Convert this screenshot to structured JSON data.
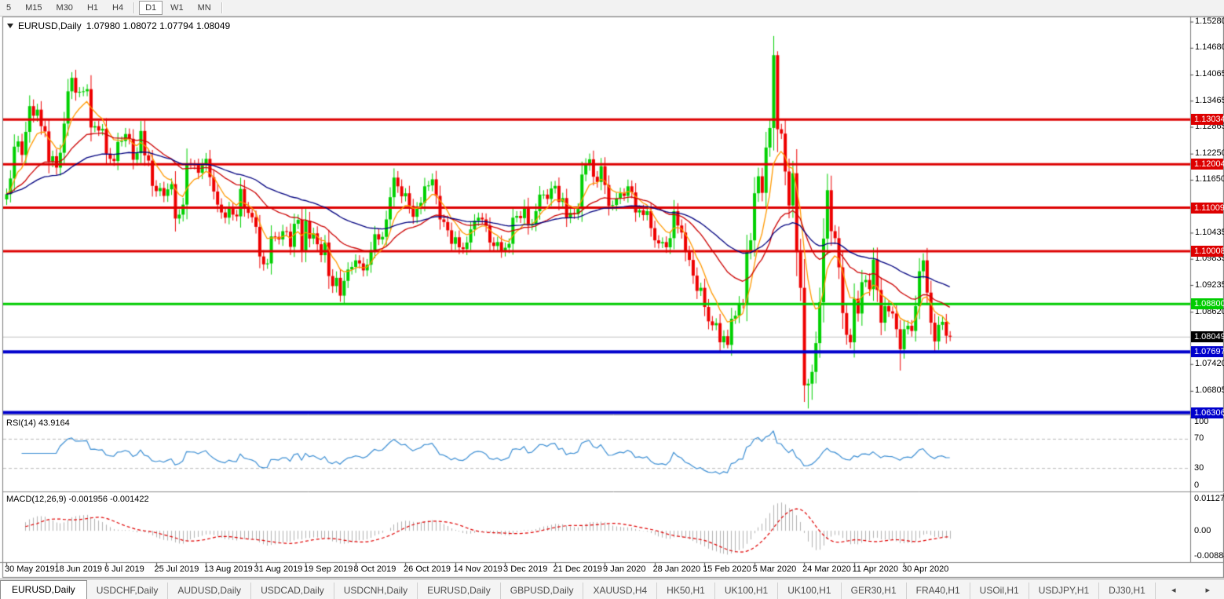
{
  "toolbar": {
    "timeframes": [
      {
        "label": "5",
        "active": false
      },
      {
        "label": "M15",
        "active": false
      },
      {
        "label": "M30",
        "active": false
      },
      {
        "label": "H1",
        "active": false
      },
      {
        "label": "H4",
        "active": false
      },
      {
        "sep": true
      },
      {
        "label": "D1",
        "active": true
      },
      {
        "label": "W1",
        "active": false
      },
      {
        "label": "MN",
        "active": false
      },
      {
        "sep": true
      }
    ]
  },
  "window": {
    "symbol": "EURUSD,Daily",
    "ohlc_text": "1.07980 1.08072 1.07794 1.08049"
  },
  "chart_data": {
    "type": "candlestick",
    "title": "EURUSD,Daily",
    "current_bar": {
      "open": 1.0798,
      "high": 1.08072,
      "low": 1.07794,
      "close": 1.08049
    },
    "ylim": [
      1.0628,
      1.1538
    ],
    "y_ticks": [
      "1.15280",
      "1.14680",
      "1.14065",
      "1.13465",
      "1.12865",
      "1.12250",
      "1.11650",
      "1.10435",
      "1.09835",
      "1.09235",
      "1.08620",
      "1.07420",
      "1.06805",
      "1.06205"
    ],
    "x_tick_labels": [
      "30 May 2019",
      "18 Jun 2019",
      "6 Jul 2019",
      "25 Jul 2019",
      "13 Aug 2019",
      "31 Aug 2019",
      "19 Sep 2019",
      "8 Oct 2019",
      "26 Oct 2019",
      "14 Nov 2019",
      "3 Dec 2019",
      "21 Dec 2019",
      "9 Jan 2020",
      "28 Jan 2020",
      "15 Feb 2020",
      "5 Mar 2020",
      "24 Mar 2020",
      "11 Apr 2020",
      "30 Apr 2020"
    ],
    "x_tick_candle_interval": 13,
    "daily_closes": [
      1.1132,
      1.1168,
      1.1241,
      1.1253,
      1.1222,
      1.1275,
      1.1334,
      1.1312,
      1.1326,
      1.1288,
      1.1276,
      1.1207,
      1.1219,
      1.1193,
      1.1227,
      1.1294,
      1.1368,
      1.1399,
      1.1365,
      1.1367,
      1.1368,
      1.1373,
      1.1285,
      1.1288,
      1.1278,
      1.1282,
      1.1225,
      1.1213,
      1.1208,
      1.1252,
      1.1254,
      1.127,
      1.1259,
      1.1211,
      1.1226,
      1.1277,
      1.1221,
      1.1209,
      1.1151,
      1.1139,
      1.1146,
      1.1128,
      1.1143,
      1.1155,
      1.1076,
      1.1085,
      1.1108,
      1.1203,
      1.12,
      1.1199,
      1.1181,
      1.1199,
      1.1213,
      1.1171,
      1.1138,
      1.1108,
      1.109,
      1.1078,
      1.1099,
      1.1085,
      1.1081,
      1.1144,
      1.1101,
      1.1089,
      1.1079,
      1.1057,
      1.0989,
      1.0971,
      1.0973,
      1.1035,
      1.1034,
      1.1028,
      1.1047,
      1.1046,
      1.1011,
      1.1064,
      1.1073,
      1.1003,
      1.1071,
      1.103,
      1.1042,
      1.1017,
      1.0992,
      1.1021,
      1.0944,
      1.0921,
      1.094,
      1.0899,
      1.0933,
      1.0959,
      1.0965,
      1.098,
      1.0973,
      1.0957,
      1.097,
      1.1004,
      1.104,
      1.1028,
      1.1034,
      1.1074,
      1.1125,
      1.117,
      1.115,
      1.1127,
      1.1134,
      1.1105,
      1.108,
      1.1099,
      1.1112,
      1.115,
      1.1152,
      1.1166,
      1.1128,
      1.1074,
      1.1068,
      1.1049,
      1.1018,
      1.1033,
      1.101,
      1.1006,
      1.1021,
      1.1051,
      1.1071,
      1.1078,
      1.1074,
      1.1059,
      1.1021,
      1.1013,
      1.1022,
      1.1001,
      1.1009,
      1.1018,
      1.1078,
      1.1082,
      1.1077,
      1.1103,
      1.106,
      1.1064,
      1.1093,
      1.1131,
      1.1131,
      1.1121,
      1.1145,
      1.1151,
      1.1114,
      1.1123,
      1.1078,
      1.1089,
      1.1086,
      1.1098,
      1.1177,
      1.1199,
      1.1212,
      1.1172,
      1.116,
      1.1196,
      1.1153,
      1.1105,
      1.1107,
      1.1122,
      1.1134,
      1.1128,
      1.115,
      1.1136,
      1.109,
      1.1095,
      1.1084,
      1.1093,
      1.1054,
      1.1026,
      1.1019,
      1.1022,
      1.101,
      1.1031,
      1.1093,
      1.106,
      1.1044,
      1.0999,
      1.0981,
      1.0945,
      1.091,
      1.0917,
      1.0873,
      1.084,
      1.0831,
      1.0836,
      1.0792,
      1.0806,
      1.0786,
      1.0846,
      1.0853,
      1.0881,
      1.088,
      1.0999,
      1.1026,
      1.1134,
      1.1173,
      1.1135,
      1.1239,
      1.1284,
      1.1451,
      1.1281,
      1.1271,
      1.1184,
      1.1106,
      1.118,
      1.0999,
      1.0917,
      1.0693,
      1.0697,
      1.0724,
      1.079,
      1.0884,
      1.103,
      1.1141,
      1.1047,
      1.1031,
      1.0964,
      1.0859,
      1.0809,
      1.0792,
      1.0892,
      1.0858,
      1.093,
      1.0935,
      1.0914,
      1.0982,
      1.0912,
      1.0837,
      1.0875,
      1.0863,
      1.0858,
      1.0822,
      1.0776,
      1.0822,
      1.083,
      1.0818,
      1.0875,
      1.0955,
      1.098,
      1.0906,
      1.0837,
      1.0794,
      1.0832,
      1.0839,
      1.0807,
      1.0805
    ],
    "wick_overrides": {
      "17": {
        "h": 1.1412
      },
      "87": {
        "l": 1.0885
      },
      "88": {
        "l": 1.0879
      },
      "188": {
        "l": 1.0778
      },
      "200": {
        "h": 1.1495
      },
      "201": {
        "h": 1.146
      },
      "208": {
        "l": 1.0655
      },
      "209": {
        "l": 1.064
      },
      "210": {
        "l": 1.066
      },
      "233": {
        "l": 1.0727
      },
      "242": {
        "l": 1.0767
      }
    },
    "bull_color": "#00d000",
    "bear_color": "#ee0000",
    "horizontal_lines": [
      {
        "price": 1.13034,
        "label": "1.13034",
        "color": "#dd0000",
        "width": 3
      },
      {
        "price": 1.12004,
        "label": "1.12004",
        "color": "#dd0000",
        "width": 3
      },
      {
        "price": 1.11009,
        "label": "1.11009",
        "color": "#dd0000",
        "width": 3
      },
      {
        "price": 1.10008,
        "label": "1.10008",
        "color": "#dd0000",
        "width": 3
      },
      {
        "price": 1.088,
        "label": "1.08800",
        "color": "#00cc00",
        "width": 3
      },
      {
        "price": 1.07697,
        "label": "1.07697",
        "color": "#0000cc",
        "width": 4
      },
      {
        "price": 1.06306,
        "label": "1.06306",
        "color": "#0000cc",
        "width": 4
      }
    ],
    "current_price": {
      "value": 1.08049,
      "label": "1.08049",
      "line_color": "#c0c0c0",
      "label_bg": "#000000"
    },
    "moving_averages": [
      {
        "type": "ema",
        "period": 8,
        "color": "#ff9900"
      },
      {
        "type": "ema",
        "period": 28,
        "color": "#cc0000"
      },
      {
        "type": "ema",
        "period": 60,
        "color": "#00007f"
      }
    ],
    "indicators": [
      {
        "name": "RSI",
        "label": "RSI(14) 43.9164",
        "period": 14,
        "value": 43.9164,
        "levels": [
          70,
          30
        ],
        "y_ticks": [
          "100",
          "70",
          "30",
          "0"
        ],
        "range": [
          0,
          100
        ],
        "color": "#3d8fd4"
      },
      {
        "name": "MACD",
        "label": "MACD(12,26,9) -0.001956 -0.001422",
        "fast": 12,
        "slow": 26,
        "signal": 9,
        "values": [
          -0.001956,
          -0.001422
        ],
        "y_ticks": [
          "0.011277",
          "0.00",
          "-0.008849"
        ],
        "range": [
          -0.0095,
          0.0118
        ],
        "histogram_color": "#b2b2b2",
        "signal_color": "#e00000"
      }
    ]
  },
  "tabs": {
    "items": [
      {
        "label": "EURUSD,Daily",
        "active": true
      },
      {
        "label": "USDCHF,Daily",
        "active": false
      },
      {
        "label": "AUDUSD,Daily",
        "active": false
      },
      {
        "label": "USDCAD,Daily",
        "active": false
      },
      {
        "label": "USDCNH,Daily",
        "active": false
      },
      {
        "label": "EURUSD,Daily",
        "active": false
      },
      {
        "label": "GBPUSD,Daily",
        "active": false
      },
      {
        "label": "XAUUSD,H4",
        "active": false
      },
      {
        "label": "HK50,H1",
        "active": false
      },
      {
        "label": "UK100,H1",
        "active": false
      },
      {
        "label": "UK100,H1",
        "active": false
      },
      {
        "label": "GER30,H1",
        "active": false
      },
      {
        "label": "FRA40,H1",
        "active": false
      },
      {
        "label": "USOil,H1",
        "active": false
      },
      {
        "label": "USDJPY,H1",
        "active": false
      },
      {
        "label": "DJ30,H1",
        "active": false
      }
    ],
    "scroll_left": "◂",
    "scroll_right": "▸"
  }
}
